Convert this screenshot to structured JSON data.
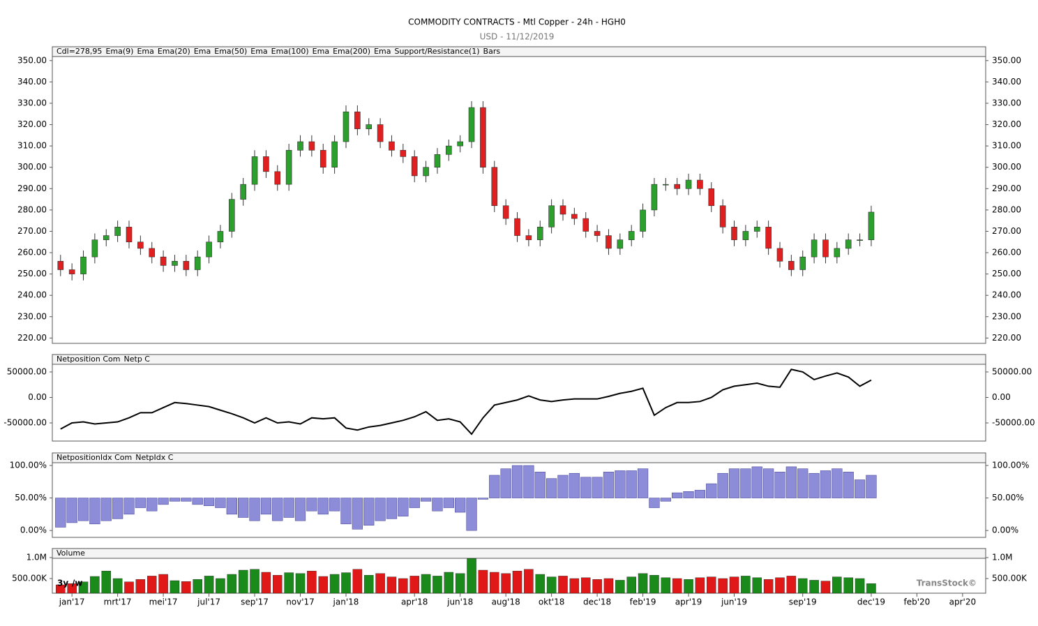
{
  "chart_data": [
    {
      "type": "candlestick",
      "title": "COMMODITY CONTRACTS - Mtl Copper - 24h - HGH0",
      "subtitle": "USD - 11/12/2019",
      "legend": [
        "Cdl=278,95",
        "Ema(9)",
        "Ema",
        "Ema(20)",
        "Ema",
        "Ema(50)",
        "Ema",
        "Ema(100)",
        "Ema",
        "Ema(200)",
        "Ema",
        "Support/Resistance(1)",
        "Bars"
      ],
      "xlim": [
        -0.86,
        39.92
      ],
      "x": [
        -0.5,
        0,
        0.5,
        1,
        1.5,
        2,
        2.5,
        3,
        3.5,
        4,
        4.5,
        5,
        5.5,
        6,
        6.5,
        7,
        7.5,
        8,
        8.5,
        9,
        9.5,
        10,
        10.5,
        11,
        11.5,
        12,
        12.5,
        13,
        13.5,
        14,
        14.5,
        15,
        15.5,
        16,
        16.5,
        17,
        17.5,
        18,
        18.5,
        19,
        19.5,
        20,
        20.5,
        21,
        21.5,
        22,
        22.5,
        23,
        23.5,
        24,
        24.5,
        25,
        25.5,
        26,
        26.5,
        27,
        27.5,
        28,
        28.5,
        29,
        29.5,
        30,
        30.5,
        31,
        31.5,
        32,
        32.5,
        33,
        33.5,
        34,
        34.5,
        35
      ],
      "open": [
        256,
        252,
        250,
        258,
        266,
        268,
        272,
        265,
        262,
        258,
        254,
        256,
        252,
        258,
        265,
        270,
        285,
        292,
        305,
        298,
        292,
        308,
        312,
        308,
        300,
        312,
        326,
        318,
        320,
        312,
        308,
        305,
        296,
        300,
        306,
        310,
        312,
        328,
        300,
        282,
        276,
        268,
        266,
        272,
        282,
        278,
        276,
        270,
        268,
        262,
        266,
        270,
        280,
        292,
        292,
        290,
        294,
        290,
        282,
        272,
        266,
        270,
        272,
        262,
        256,
        252,
        258,
        266,
        258,
        262,
        266,
        266
      ],
      "high": [
        259,
        255,
        261,
        269,
        271,
        275,
        275,
        268,
        265,
        261,
        259,
        259,
        261,
        268,
        273,
        288,
        295,
        308,
        308,
        301,
        311,
        315,
        315,
        311,
        315,
        329,
        329,
        323,
        323,
        315,
        311,
        308,
        303,
        309,
        313,
        315,
        331,
        331,
        303,
        285,
        279,
        271,
        275,
        285,
        285,
        281,
        279,
        273,
        271,
        269,
        273,
        283,
        295,
        295,
        295,
        297,
        297,
        293,
        285,
        275,
        273,
        275,
        275,
        265,
        259,
        261,
        269,
        269,
        265,
        269,
        269,
        282
      ],
      "low": [
        249,
        247,
        247,
        255,
        263,
        265,
        262,
        259,
        255,
        251,
        251,
        249,
        249,
        255,
        262,
        267,
        282,
        289,
        295,
        289,
        289,
        305,
        305,
        297,
        297,
        309,
        315,
        315,
        309,
        305,
        302,
        293,
        293,
        297,
        303,
        307,
        309,
        297,
        279,
        273,
        265,
        263,
        263,
        269,
        275,
        273,
        267,
        265,
        259,
        259,
        263,
        267,
        277,
        289,
        287,
        287,
        287,
        279,
        269,
        263,
        263,
        267,
        259,
        253,
        249,
        249,
        255,
        255,
        255,
        259,
        263,
        263
      ],
      "close": [
        252,
        250,
        258,
        266,
        268,
        272,
        265,
        262,
        258,
        254,
        256,
        252,
        258,
        265,
        270,
        285,
        292,
        305,
        298,
        292,
        308,
        312,
        308,
        300,
        312,
        326,
        318,
        320,
        312,
        308,
        305,
        296,
        300,
        306,
        310,
        312,
        328,
        300,
        282,
        276,
        268,
        266,
        272,
        282,
        278,
        276,
        270,
        268,
        262,
        266,
        270,
        280,
        292,
        292,
        290,
        294,
        290,
        282,
        272,
        266,
        270,
        272,
        262,
        256,
        252,
        258,
        266,
        258,
        262,
        266,
        266,
        279
      ],
      "up_color": "#2ca02c",
      "down_color": "#e02020",
      "ylim": [
        217.5,
        351.9
      ],
      "yticks": [
        {
          "value": 350,
          "label": "350.00"
        },
        {
          "value": 340,
          "label": "340.00"
        },
        {
          "value": 330,
          "label": "330.00"
        },
        {
          "value": 320,
          "label": "320.00"
        },
        {
          "value": 310,
          "label": "310.00"
        },
        {
          "value": 300,
          "label": "300.00"
        },
        {
          "value": 290,
          "label": "290.00"
        },
        {
          "value": 280,
          "label": "280.00"
        },
        {
          "value": 270,
          "label": "270.00"
        },
        {
          "value": 260,
          "label": "260.00"
        },
        {
          "value": 250,
          "label": "250.00"
        },
        {
          "value": 240,
          "label": "240.00"
        },
        {
          "value": 230,
          "label": "230.00"
        },
        {
          "value": 220,
          "label": "220.00"
        }
      ]
    },
    {
      "type": "line",
      "legend": [
        "Netposition Com",
        "Netp C"
      ],
      "color": "#000000",
      "values": [
        -62000,
        -50000,
        -48000,
        -52000,
        -50000,
        -48000,
        -40000,
        -30000,
        -30000,
        -20000,
        -10000,
        -12000,
        -15000,
        -18000,
        -25000,
        -32000,
        -40000,
        -50000,
        -40000,
        -50000,
        -48000,
        -52000,
        -40000,
        -42000,
        -40000,
        -60000,
        -64000,
        -58000,
        -55000,
        -50000,
        -45000,
        -38000,
        -28000,
        -45000,
        -42000,
        -48000,
        -72000,
        -40000,
        -15000,
        -10000,
        -5000,
        3000,
        -5000,
        -8000,
        -5000,
        -3000,
        -3000,
        -3000,
        2000,
        8000,
        12000,
        18000,
        -35000,
        -20000,
        -10000,
        -10000,
        -8000,
        0,
        15000,
        22000,
        25000,
        28000,
        22000,
        20000,
        55000,
        50000,
        35000,
        42000,
        48000,
        40000,
        22000,
        34000
      ],
      "ylim": [
        -85600,
        65000
      ],
      "yticks": [
        {
          "value": 50000,
          "label": "50000.00"
        },
        {
          "value": 0,
          "label": "0.00"
        },
        {
          "value": -50000,
          "label": "-50000.00"
        }
      ]
    },
    {
      "type": "bar",
      "legend": [
        "NetpositionIdx Com",
        "NetpIdx C"
      ],
      "color": "#8c8cd8",
      "baseline": 50,
      "values": [
        5,
        12,
        15,
        10,
        15,
        18,
        25,
        35,
        30,
        40,
        45,
        45,
        40,
        38,
        35,
        25,
        20,
        15,
        25,
        15,
        20,
        15,
        30,
        25,
        30,
        10,
        2,
        8,
        15,
        18,
        22,
        35,
        45,
        30,
        35,
        28,
        0,
        48,
        85,
        95,
        100,
        100,
        90,
        80,
        85,
        88,
        82,
        82,
        90,
        92,
        92,
        95,
        35,
        45,
        58,
        60,
        62,
        72,
        88,
        95,
        95,
        98,
        95,
        90,
        98,
        95,
        88,
        92,
        95,
        90,
        78,
        85
      ],
      "ylim": [
        -10.6,
        104.3
      ],
      "yticks": [
        {
          "value": 100,
          "label": "100.00%"
        },
        {
          "value": 50,
          "label": "50.00%"
        },
        {
          "value": 0,
          "label": "0.00%"
        }
      ]
    },
    {
      "type": "volume",
      "legend": [
        "Volume"
      ],
      "up_color": "#1a8a1a",
      "down_color": "#e01818",
      "values": [
        350000,
        380000,
        420000,
        550000,
        680000,
        500000,
        420000,
        480000,
        560000,
        600000,
        450000,
        430000,
        480000,
        560000,
        500000,
        600000,
        700000,
        720000,
        650000,
        580000,
        640000,
        620000,
        680000,
        550000,
        600000,
        640000,
        720000,
        580000,
        620000,
        540000,
        500000,
        560000,
        600000,
        560000,
        650000,
        620000,
        980000,
        700000,
        650000,
        620000,
        680000,
        720000,
        600000,
        540000,
        560000,
        500000,
        520000,
        480000,
        500000,
        460000,
        540000,
        620000,
        580000,
        520000,
        500000,
        480000,
        520000,
        540000,
        500000,
        540000,
        560000,
        520000,
        480000,
        520000,
        560000,
        500000,
        460000,
        440000,
        540000,
        520000,
        500000,
        380000
      ],
      "ylim": [
        150000,
        983000
      ],
      "yticks": [
        {
          "value": 1000000,
          "label": "1.0M"
        },
        {
          "value": 500000,
          "label": "500.00K"
        }
      ],
      "xticks": [
        {
          "value": 0,
          "label": "jan'17"
        },
        {
          "value": 2,
          "label": "mrt'17"
        },
        {
          "value": 4,
          "label": "mei'17"
        },
        {
          "value": 6,
          "label": "jul'17"
        },
        {
          "value": 8,
          "label": "sep'17"
        },
        {
          "value": 10,
          "label": "nov'17"
        },
        {
          "value": 12,
          "label": "jan'18"
        },
        {
          "value": 15,
          "label": "apr'18"
        },
        {
          "value": 17,
          "label": "jun'18"
        },
        {
          "value": 19,
          "label": "aug'18"
        },
        {
          "value": 21,
          "label": "okt'18"
        },
        {
          "value": 23,
          "label": "dec'18"
        },
        {
          "value": 25,
          "label": "feb'19"
        },
        {
          "value": 27,
          "label": "apr'19"
        },
        {
          "value": 29,
          "label": "jun'19"
        },
        {
          "value": 32,
          "label": "sep'19"
        },
        {
          "value": 35,
          "label": "dec'19"
        },
        {
          "value": 37,
          "label": "feb'20"
        },
        {
          "value": 39,
          "label": "apr'20"
        }
      ],
      "annotations": [
        "3y",
        "/w"
      ],
      "watermark": "TransStock©"
    }
  ]
}
